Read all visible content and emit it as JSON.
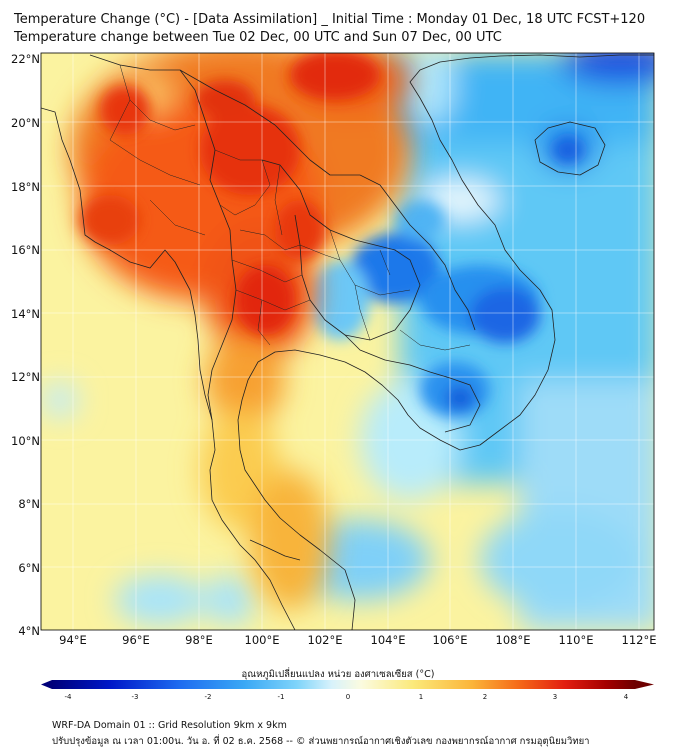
{
  "header": {
    "line1": "Temperature Change (°C) - [Data Assimilation] _ Initial Time : Monday 01 Dec, 18 UTC FCST+120",
    "line2": "Temperature change between Tue 02 Dec, 00 UTC and Sun 07 Dec, 00 UTC"
  },
  "map": {
    "lat_labels": [
      "22°N",
      "20°N",
      "18°N",
      "16°N",
      "14°N",
      "12°N",
      "10°N",
      "8°N",
      "6°N",
      "4°N"
    ],
    "lon_labels": [
      "94°E",
      "96°E",
      "98°E",
      "100°E",
      "102°E",
      "104°E",
      "106°E",
      "108°E",
      "110°E",
      "112°E"
    ],
    "lat_range": [
      4,
      22
    ],
    "lon_range": [
      93,
      112.5
    ]
  },
  "colorbar": {
    "title": "อุณหภูมิเปลี่ยนแปลง หน่วย องศาเซลเซียส (°C)",
    "ticks": [
      "-4",
      "-3",
      "-2",
      "-1",
      "0",
      "1",
      "2",
      "3",
      "4"
    ],
    "range": [
      -4,
      4
    ],
    "colors": [
      "#00007a",
      "#0018c8",
      "#1e6cf0",
      "#3aa8f5",
      "#7fd4fa",
      "#d8f2fb",
      "#fbfbe0",
      "#fbe97a",
      "#fbb53a",
      "#f56a18",
      "#e21e10",
      "#a50000",
      "#6e0000"
    ]
  },
  "footer": {
    "line1": "WRF-DA Domain 01 :: Grid Resolution 9km x 9km",
    "line2": "ปรับปรุงข้อมูล ณ เวลา 01:00น. วัน อ. ที่ 02 ธ.ค. 2568 -- © ส่วนพยากรณ์อากาศเชิงตัวเลข กองพยากรณ์อากาศ กรมอุตุนิยมวิทยา"
  }
}
